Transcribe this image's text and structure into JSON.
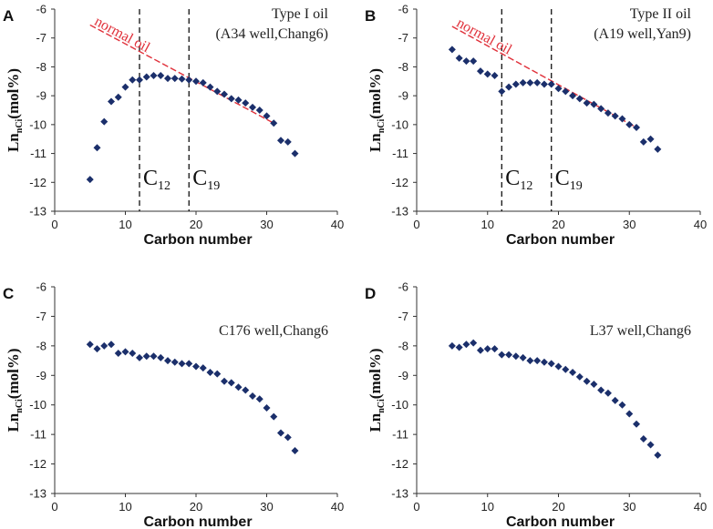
{
  "chart_data": [
    {
      "type": "scatter",
      "panel": "A",
      "title": "Type I oil",
      "subtitle": "(A34 well,Chang6)",
      "xlabel": "Carbon number",
      "ylabel": "Ln",
      "ylabel_sub": "nCi",
      "ylabel_suffix": "(mol%)",
      "xlim": [
        0,
        40
      ],
      "ylim": [
        -13,
        -6
      ],
      "xticks": [
        0,
        10,
        20,
        30,
        40
      ],
      "yticks": [
        -13,
        -12,
        -11,
        -10,
        -9,
        -8,
        -7,
        -6
      ],
      "marker_color": "#1b2f6b",
      "series": [
        {
          "name": "Type I oil",
          "x": [
            5,
            6,
            7,
            8,
            9,
            10,
            11,
            12,
            13,
            14,
            15,
            16,
            17,
            18,
            19,
            20,
            21,
            22,
            23,
            24,
            25,
            26,
            27,
            28,
            29,
            30,
            31,
            32,
            33,
            34
          ],
          "y": [
            -11.9,
            -10.8,
            -9.9,
            -9.2,
            -9.05,
            -8.7,
            -8.45,
            -8.45,
            -8.35,
            -8.3,
            -8.3,
            -8.4,
            -8.4,
            -8.42,
            -8.45,
            -8.5,
            -8.55,
            -8.7,
            -8.85,
            -8.95,
            -9.1,
            -9.15,
            -9.25,
            -9.4,
            -9.5,
            -9.7,
            -9.95,
            -10.55,
            -10.6,
            -11.0
          ]
        }
      ],
      "reference_line": {
        "label": "normal oil",
        "x": [
          5,
          31
        ],
        "y": [
          -6.55,
          -9.95
        ],
        "color": "#e0303a"
      },
      "markers": [
        {
          "label": "C",
          "sub": "12",
          "x": 12
        },
        {
          "label": "C",
          "sub": "19",
          "x": 19
        }
      ]
    },
    {
      "type": "scatter",
      "panel": "B",
      "title": "Type II oil",
      "subtitle": "(A19 well,Yan9)",
      "xlabel": "Carbon number",
      "ylabel": "Ln",
      "ylabel_sub": "nCi",
      "ylabel_suffix": "(mol%)",
      "xlim": [
        0,
        40
      ],
      "ylim": [
        -13,
        -6
      ],
      "xticks": [
        0,
        10,
        20,
        30,
        40
      ],
      "yticks": [
        -13,
        -12,
        -11,
        -10,
        -9,
        -8,
        -7,
        -6
      ],
      "marker_color": "#1b2f6b",
      "series": [
        {
          "name": "Type II oil",
          "x": [
            5,
            6,
            7,
            8,
            9,
            10,
            11,
            12,
            13,
            14,
            15,
            16,
            17,
            18,
            19,
            20,
            21,
            22,
            23,
            24,
            25,
            26,
            27,
            28,
            29,
            30,
            31,
            32,
            33,
            34
          ],
          "y": [
            -7.4,
            -7.7,
            -7.8,
            -7.8,
            -8.15,
            -8.25,
            -8.3,
            -8.85,
            -8.7,
            -8.6,
            -8.55,
            -8.55,
            -8.55,
            -8.6,
            -8.6,
            -8.75,
            -8.85,
            -9.0,
            -9.1,
            -9.25,
            -9.3,
            -9.45,
            -9.6,
            -9.7,
            -9.8,
            -10.0,
            -10.1,
            -10.6,
            -10.5,
            -10.85
          ]
        }
      ],
      "reference_line": {
        "label": "normal oil",
        "x": [
          5,
          31
        ],
        "y": [
          -6.6,
          -10.1
        ],
        "color": "#e0303a"
      },
      "markers": [
        {
          "label": "C",
          "sub": "12",
          "x": 12
        },
        {
          "label": "C",
          "sub": "19",
          "x": 19
        }
      ]
    },
    {
      "type": "scatter",
      "panel": "C",
      "title": "C176 well,Chang6",
      "subtitle": "",
      "xlabel": "Carbon number",
      "ylabel": "Ln",
      "ylabel_sub": "nCi",
      "ylabel_suffix": "(mol%)",
      "xlim": [
        0,
        40
      ],
      "ylim": [
        -13,
        -6
      ],
      "xticks": [
        0,
        10,
        20,
        30,
        40
      ],
      "yticks": [
        -13,
        -12,
        -11,
        -10,
        -9,
        -8,
        -7,
        -6
      ],
      "marker_color": "#1b2f6b",
      "series": [
        {
          "name": "C176 well",
          "x": [
            5,
            6,
            7,
            8,
            9,
            10,
            11,
            12,
            13,
            14,
            15,
            16,
            17,
            18,
            19,
            20,
            21,
            22,
            23,
            24,
            25,
            26,
            27,
            28,
            29,
            30,
            31,
            32,
            33,
            34
          ],
          "y": [
            -7.95,
            -8.1,
            -8.0,
            -7.95,
            -8.25,
            -8.2,
            -8.25,
            -8.4,
            -8.35,
            -8.35,
            -8.4,
            -8.5,
            -8.55,
            -8.6,
            -8.6,
            -8.7,
            -8.75,
            -8.9,
            -8.95,
            -9.2,
            -9.25,
            -9.4,
            -9.5,
            -9.7,
            -9.8,
            -10.1,
            -10.4,
            -10.95,
            -11.1,
            -11.55
          ]
        }
      ]
    },
    {
      "type": "scatter",
      "panel": "D",
      "title": "L37 well,Chang6",
      "subtitle": "",
      "xlabel": "Carbon number",
      "ylabel": "Ln",
      "ylabel_sub": "nCi",
      "ylabel_suffix": "(mol%)",
      "xlim": [
        0,
        40
      ],
      "ylim": [
        -13,
        -6
      ],
      "xticks": [
        0,
        10,
        20,
        30,
        40
      ],
      "yticks": [
        -13,
        -12,
        -11,
        -10,
        -9,
        -8,
        -7,
        -6
      ],
      "marker_color": "#1b2f6b",
      "series": [
        {
          "name": "L37 well",
          "x": [
            5,
            6,
            7,
            8,
            9,
            10,
            11,
            12,
            13,
            14,
            15,
            16,
            17,
            18,
            19,
            20,
            21,
            22,
            23,
            24,
            25,
            26,
            27,
            28,
            29,
            30,
            31,
            32,
            33,
            34
          ],
          "y": [
            -8.0,
            -8.05,
            -7.95,
            -7.9,
            -8.15,
            -8.1,
            -8.1,
            -8.3,
            -8.3,
            -8.35,
            -8.4,
            -8.5,
            -8.5,
            -8.55,
            -8.6,
            -8.7,
            -8.8,
            -8.9,
            -9.05,
            -9.2,
            -9.3,
            -9.5,
            -9.6,
            -9.85,
            -10.0,
            -10.3,
            -10.65,
            -11.15,
            -11.35,
            -11.7
          ]
        }
      ]
    }
  ]
}
